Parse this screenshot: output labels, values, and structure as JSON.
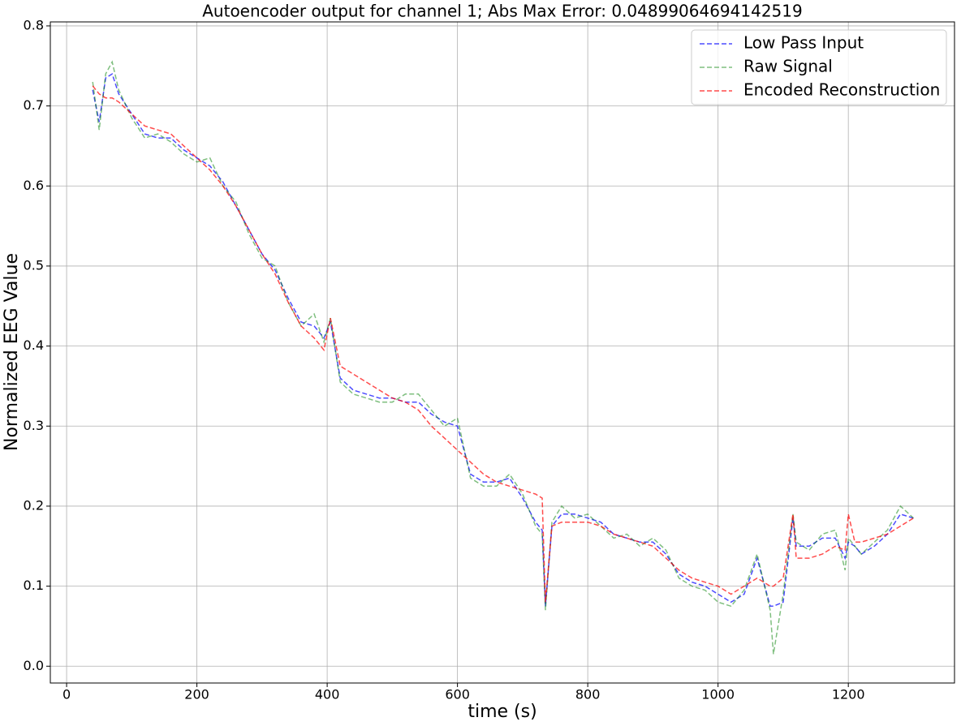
{
  "chart_data": {
    "type": "line",
    "title": "Autoencoder output for channel 1; Abs Max Error: 0.04899064694142519",
    "xlabel": "time (s)",
    "ylabel": "Normalized EEG Value",
    "x": [
      40,
      50,
      60,
      70,
      80,
      100,
      120,
      140,
      160,
      180,
      200,
      220,
      240,
      260,
      280,
      300,
      320,
      340,
      360,
      380,
      395,
      405,
      420,
      440,
      460,
      480,
      500,
      520,
      540,
      560,
      580,
      600,
      620,
      640,
      660,
      680,
      700,
      720,
      730,
      735,
      745,
      760,
      780,
      800,
      820,
      840,
      860,
      880,
      900,
      920,
      940,
      960,
      980,
      1000,
      1020,
      1040,
      1060,
      1080,
      1085,
      1100,
      1115,
      1120,
      1140,
      1160,
      1180,
      1195,
      1200,
      1210,
      1220,
      1240,
      1260,
      1280,
      1300
    ],
    "series": [
      {
        "name": "Low Pass Input",
        "color": "#0000ff",
        "values": [
          0.72,
          0.68,
          0.735,
          0.74,
          0.715,
          0.69,
          0.665,
          0.66,
          0.66,
          0.645,
          0.635,
          0.625,
          0.605,
          0.575,
          0.545,
          0.515,
          0.495,
          0.46,
          0.43,
          0.425,
          0.41,
          0.43,
          0.36,
          0.345,
          0.34,
          0.335,
          0.335,
          0.33,
          0.33,
          0.315,
          0.305,
          0.3,
          0.24,
          0.23,
          0.23,
          0.235,
          0.21,
          0.18,
          0.17,
          0.075,
          0.175,
          0.19,
          0.19,
          0.185,
          0.18,
          0.165,
          0.16,
          0.155,
          0.155,
          0.14,
          0.115,
          0.105,
          0.1,
          0.09,
          0.08,
          0.09,
          0.135,
          0.075,
          0.075,
          0.08,
          0.185,
          0.15,
          0.15,
          0.16,
          0.16,
          0.135,
          0.155,
          0.15,
          0.14,
          0.15,
          0.165,
          0.19,
          0.185
        ]
      },
      {
        "name": "Raw Signal",
        "color": "#008000",
        "values": [
          0.73,
          0.67,
          0.74,
          0.755,
          0.72,
          0.685,
          0.66,
          0.665,
          0.655,
          0.64,
          0.63,
          0.635,
          0.6,
          0.58,
          0.54,
          0.51,
          0.5,
          0.455,
          0.425,
          0.44,
          0.405,
          0.435,
          0.355,
          0.34,
          0.335,
          0.33,
          0.33,
          0.34,
          0.34,
          0.32,
          0.3,
          0.31,
          0.235,
          0.225,
          0.225,
          0.24,
          0.215,
          0.175,
          0.165,
          0.07,
          0.18,
          0.2,
          0.185,
          0.19,
          0.175,
          0.16,
          0.165,
          0.15,
          0.16,
          0.145,
          0.11,
          0.1,
          0.095,
          0.08,
          0.075,
          0.095,
          0.14,
          0.07,
          0.015,
          0.09,
          0.19,
          0.155,
          0.145,
          0.165,
          0.17,
          0.12,
          0.16,
          0.15,
          0.14,
          0.155,
          0.17,
          0.2,
          0.185
        ]
      },
      {
        "name": "Encoded Reconstruction",
        "color": "#ff0000",
        "values": [
          0.725,
          0.715,
          0.71,
          0.71,
          0.705,
          0.69,
          0.675,
          0.67,
          0.665,
          0.65,
          0.635,
          0.62,
          0.6,
          0.575,
          0.545,
          0.515,
          0.49,
          0.455,
          0.425,
          0.41,
          0.395,
          0.435,
          0.375,
          0.365,
          0.355,
          0.345,
          0.335,
          0.33,
          0.32,
          0.3,
          0.285,
          0.27,
          0.255,
          0.24,
          0.23,
          0.225,
          0.22,
          0.215,
          0.21,
          0.08,
          0.175,
          0.18,
          0.18,
          0.18,
          0.175,
          0.165,
          0.16,
          0.155,
          0.15,
          0.135,
          0.12,
          0.11,
          0.105,
          0.1,
          0.09,
          0.1,
          0.11,
          0.1,
          0.1,
          0.11,
          0.19,
          0.135,
          0.135,
          0.14,
          0.15,
          0.145,
          0.19,
          0.155,
          0.155,
          0.16,
          0.165,
          0.175,
          0.185
        ]
      }
    ],
    "xlim": [
      -25,
      1363
    ],
    "ylim": [
      -0.021,
      0.805
    ],
    "xticks": [
      0,
      200,
      400,
      600,
      800,
      1000,
      1200
    ],
    "yticks": [
      {
        "value": 0,
        "label": "0.0"
      },
      0.1,
      0.2,
      0.3,
      0.4,
      0.5,
      0.6,
      0.7,
      0.8
    ],
    "grid": true,
    "legend": "upper right",
    "dashed": true
  }
}
